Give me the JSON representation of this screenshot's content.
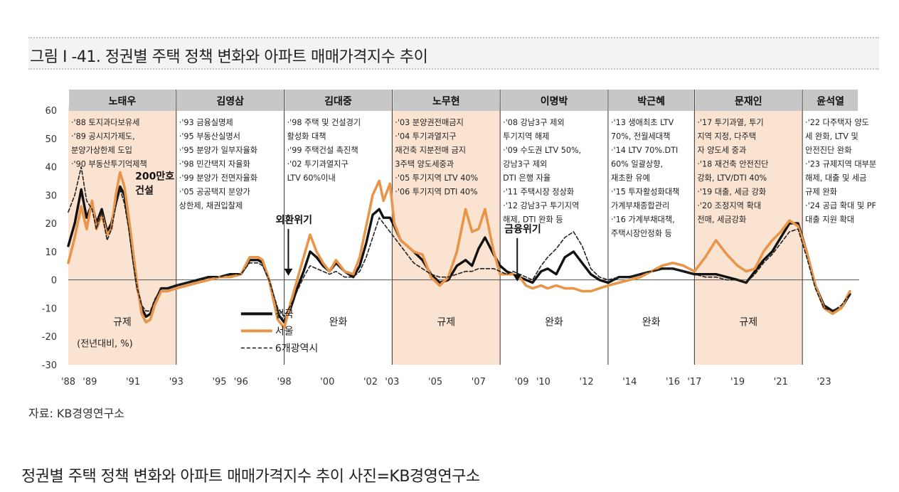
{
  "figure": {
    "title": "그림 I -41. 정권별 주택 정책 변화와 아파트 매매가격지수 추이",
    "source": "자료: KB경영연구소",
    "caption": "정권별 주택 정책 변화와 아파트 매매가격지수 추이 사진=KB경영연구소"
  },
  "chart_data": {
    "type": "line",
    "ylim": [
      -30,
      60
    ],
    "y_ticks": [
      "60",
      "50",
      "40",
      "30",
      "20",
      "10",
      "0",
      "-10",
      "-20",
      "-30"
    ],
    "x_range": [
      1988,
      2024.3
    ],
    "x_ticks": [
      {
        "label": "'88",
        "x": 1988
      },
      {
        "label": "'89",
        "x": 1989
      },
      {
        "label": "'91",
        "x": 1991
      },
      {
        "label": "'93",
        "x": 1993
      },
      {
        "label": "'95",
        "x": 1995
      },
      {
        "label": "'96",
        "x": 1996
      },
      {
        "label": "'98",
        "x": 1998
      },
      {
        "label": "'00",
        "x": 2000
      },
      {
        "label": "'02",
        "x": 2002
      },
      {
        "label": "'03",
        "x": 2003
      },
      {
        "label": "'05",
        "x": 2005
      },
      {
        "label": "'07",
        "x": 2007
      },
      {
        "label": "'09",
        "x": 2009
      },
      {
        "label": "'10",
        "x": 2010
      },
      {
        "label": "'12",
        "x": 2012
      },
      {
        "label": "'14",
        "x": 2014
      },
      {
        "label": "'16",
        "x": 2016
      },
      {
        "label": "'17",
        "x": 2017
      },
      {
        "label": "'19",
        "x": 2019
      },
      {
        "label": "'21",
        "x": 2021
      },
      {
        "label": "'23",
        "x": 2023
      }
    ],
    "ylabel_note": "(전년대비, %)",
    "eras": [
      {
        "name": "노태우",
        "start": 1988,
        "end": 1993,
        "regime": "규제",
        "shaded": true,
        "notes": [
          "·'88 토지과다보유세",
          "·'89 공시지가제도,",
          "  분양가상한제 도입",
          "·'90 부동산투기억제책"
        ]
      },
      {
        "name": "김영삼",
        "start": 1993,
        "end": 1998,
        "regime": "",
        "shaded": false,
        "notes": [
          "·'93 금융실명제",
          "·'95 부동산실명서",
          "·'95 분양가 일부자율화",
          "·'98 민간택지 자율화",
          "·'99 분양가 전면자율화",
          "·'05 공공택지 분양가",
          "  상한제, 채권입찰제"
        ]
      },
      {
        "name": "김대중",
        "start": 1998,
        "end": 2003,
        "regime": "완화",
        "shaded": false,
        "notes": [
          "·'98 주택 및 건설경기",
          "  활성화 대책",
          "·'99 주택건설 촉진책",
          "·'02 투기과열지구",
          "  LTV 60%이내"
        ]
      },
      {
        "name": "노무현",
        "start": 2003,
        "end": 2008,
        "regime": "규제",
        "shaded": true,
        "notes": [
          "·'03 분양권전매금지",
          "·'04 투기과열지구",
          "  재건축 지분전매 금지",
          "  3주택 양도세중과",
          "·'05 투기지역 LTV 40%",
          "·'06 투기지역 DTI 40%"
        ]
      },
      {
        "name": "이명박",
        "start": 2008,
        "end": 2013,
        "regime": "완화",
        "shaded": false,
        "notes": [
          "·'08 강남3구 제외",
          "  투기지역 해제",
          "·'09 수도권 LTV 50%,",
          "  강남3구 제외",
          "  DTI 은행 자율",
          "·'11 주택시장 정상화",
          "·'12 강남3구 투기지역",
          "  해제, DTI 완화 등"
        ]
      },
      {
        "name": "박근혜",
        "start": 2013,
        "end": 2017,
        "regime": "완화",
        "shaded": false,
        "notes": [
          "·'13 생애최초 LTV",
          "  70%, 전월세대책",
          "·'14 LTV 70%.DTI",
          "  60% 일괄상향,",
          "  재초환 유예",
          "·'15 투자활성화대책",
          "  가계부채종합관리",
          "·'16 가계부채대책,",
          "  주택시장안정화 등"
        ]
      },
      {
        "name": "문재인",
        "start": 2017,
        "end": 2022,
        "regime": "규제",
        "shaded": true,
        "notes": [
          "·'17 투기과열, 투기",
          "  지역 지정, 다주택",
          "  자 양도세 중과",
          "·'18 재건축 안전진단",
          "  강화, LTV/DTI 40%",
          "·'19 대출, 세금 강화",
          "·'20 조정지역 확대",
          "  전매, 세금강화"
        ]
      },
      {
        "name": "윤석열",
        "start": 2022,
        "end": 2024.6,
        "regime": "",
        "shaded": false,
        "notes": [
          "·'22 다주택자 양도",
          "  세 완화, LTV 및",
          "  안전진단 완화",
          "·'23 규제지역 대부분",
          "  해제, 대출 및 세금",
          "  규제 완화",
          "·'24 공급 확대 및 PF",
          "  대출 지원 확대"
        ]
      }
    ],
    "annotations": [
      {
        "text": "200만호",
        "x": 1991.1,
        "y": 35.5
      },
      {
        "text": "건설",
        "x": 1991.1,
        "y": 30.5
      },
      {
        "text": "외환위기",
        "x": 1997.6,
        "y": 20,
        "arrow_to": 7
      },
      {
        "text": "금융위기",
        "x": 2008.2,
        "y": 16.8,
        "arrow_to": 5
      }
    ],
    "series": [
      {
        "name": "전국",
        "color": "#111111",
        "style": "solid",
        "x": [
          1988.0,
          1988.3,
          1988.6,
          1988.85,
          1989.1,
          1989.3,
          1989.55,
          1989.8,
          1990.0,
          1990.2,
          1990.4,
          1990.6,
          1990.8,
          1991.0,
          1991.2,
          1991.4,
          1991.6,
          1991.8,
          1992.0,
          1992.3,
          1992.6,
          1993.0,
          1993.5,
          1994.0,
          1994.5,
          1995.0,
          1995.5,
          1996.0,
          1996.4,
          1996.8,
          1997.0,
          1997.3,
          1997.7,
          1998.0,
          1998.3,
          1998.6,
          1998.9,
          1999.2,
          1999.5,
          1999.8,
          2000.1,
          2000.4,
          2000.8,
          2001.2,
          2001.5,
          2001.8,
          2002.1,
          2002.4,
          2002.6,
          2002.9,
          2003.1,
          2003.4,
          2003.7,
          2004.0,
          2004.4,
          2004.8,
          2005.2,
          2005.6,
          2006.0,
          2006.4,
          2006.7,
          2007.0,
          2007.3,
          2007.7,
          2008.0,
          2008.3,
          2008.6,
          2008.9,
          2009.2,
          2009.5,
          2009.9,
          2010.2,
          2010.6,
          2011.0,
          2011.4,
          2011.8,
          2012.2,
          2012.6,
          2013.0,
          2013.5,
          2014.0,
          2014.5,
          2015.0,
          2015.5,
          2016.0,
          2016.5,
          2017.0,
          2017.5,
          2018.0,
          2018.5,
          2019.0,
          2019.4,
          2019.8,
          2020.2,
          2020.6,
          2021.0,
          2021.4,
          2021.8,
          2022.2,
          2022.6,
          2023.0,
          2023.4,
          2023.8,
          2024.2
        ],
        "y": [
          12,
          20,
          32,
          22,
          27,
          20,
          25,
          17,
          20,
          27,
          33,
          30,
          20,
          8,
          -3,
          -10,
          -13,
          -12,
          -8,
          -3,
          -3,
          -2,
          -1,
          0,
          1,
          1,
          2,
          2,
          7,
          7,
          6,
          0,
          -12,
          -15,
          -10,
          -3,
          3,
          10,
          8,
          5,
          3,
          6,
          3,
          1,
          5,
          13,
          23,
          25,
          22,
          22,
          19,
          14,
          12,
          10,
          7,
          2,
          -1,
          0,
          5,
          7,
          5,
          11,
          15,
          9,
          5,
          3,
          2,
          1,
          0,
          -1,
          3,
          4,
          2,
          8,
          10,
          6,
          2,
          0,
          -1,
          1,
          1,
          2,
          3,
          4,
          4,
          3,
          2,
          2,
          2,
          1,
          0,
          -1,
          3,
          7,
          10,
          15,
          20,
          20,
          10,
          -2,
          -9,
          -11,
          -10,
          -5
        ]
      },
      {
        "name": "서울",
        "color": "#e8954a",
        "style": "solid",
        "x": [
          1988.0,
          1988.3,
          1988.6,
          1988.85,
          1989.1,
          1989.3,
          1989.55,
          1989.8,
          1990.0,
          1990.2,
          1990.4,
          1990.6,
          1990.8,
          1991.0,
          1991.2,
          1991.4,
          1991.6,
          1991.8,
          1992.0,
          1992.3,
          1992.6,
          1993.0,
          1993.5,
          1994.0,
          1994.5,
          1995.0,
          1995.5,
          1996.0,
          1996.4,
          1996.8,
          1997.0,
          1997.3,
          1997.7,
          1998.0,
          1998.3,
          1998.6,
          1998.9,
          1999.2,
          1999.5,
          1999.8,
          2000.1,
          2000.4,
          2000.8,
          2001.2,
          2001.5,
          2001.8,
          2002.1,
          2002.4,
          2002.6,
          2002.9,
          2003.1,
          2003.4,
          2003.7,
          2004.0,
          2004.4,
          2004.8,
          2005.2,
          2005.6,
          2006.0,
          2006.4,
          2006.7,
          2007.0,
          2007.3,
          2007.7,
          2008.0,
          2008.3,
          2008.6,
          2008.9,
          2009.2,
          2009.5,
          2009.9,
          2010.2,
          2010.6,
          2011.0,
          2011.4,
          2011.8,
          2012.2,
          2012.6,
          2013.0,
          2013.5,
          2014.0,
          2014.5,
          2015.0,
          2015.5,
          2016.0,
          2016.5,
          2017.0,
          2017.5,
          2018.0,
          2018.5,
          2019.0,
          2019.4,
          2019.8,
          2020.2,
          2020.6,
          2021.0,
          2021.4,
          2021.8,
          2022.2,
          2022.6,
          2023.0,
          2023.4,
          2023.8,
          2024.2
        ],
        "y": [
          6,
          15,
          26,
          18,
          28,
          18,
          23,
          16,
          18,
          30,
          38,
          33,
          22,
          10,
          -2,
          -12,
          -15,
          -14,
          -9,
          -4,
          -4,
          -3,
          -2,
          -1,
          0,
          1,
          1,
          2,
          8,
          8,
          7,
          0,
          -14,
          -17,
          -8,
          0,
          8,
          16,
          10,
          6,
          3,
          7,
          3,
          2,
          8,
          19,
          30,
          35,
          28,
          34,
          20,
          14,
          12,
          10,
          9,
          1,
          -2,
          1,
          10,
          25,
          17,
          18,
          25,
          10,
          2,
          2,
          2,
          1,
          -2,
          -3,
          -2,
          -3,
          -2,
          -3,
          -3,
          -4,
          -4,
          -3,
          -2,
          -1,
          0,
          1,
          3,
          5,
          6,
          5,
          3,
          8,
          14,
          9,
          5,
          3,
          4,
          10,
          14,
          17,
          21,
          19,
          10,
          -2,
          -10,
          -12,
          -10,
          -4
        ]
      },
      {
        "name": "6개광역시",
        "color": "#222222",
        "style": "dashed",
        "x": [
          1988.0,
          1988.3,
          1988.6,
          1988.85,
          1989.1,
          1989.3,
          1989.55,
          1989.8,
          1990.0,
          1990.2,
          1990.4,
          1990.6,
          1990.8,
          1991.0,
          1991.2,
          1991.4,
          1991.6,
          1991.8,
          1992.0,
          1992.3,
          1992.6,
          1993.0,
          1993.5,
          1994.0,
          1994.5,
          1995.0,
          1995.5,
          1996.0,
          1996.4,
          1996.8,
          1997.0,
          1997.3,
          1997.7,
          1998.0,
          1998.3,
          1998.6,
          1998.9,
          1999.2,
          1999.5,
          1999.8,
          2000.1,
          2000.4,
          2000.8,
          2001.2,
          2001.5,
          2001.8,
          2002.1,
          2002.4,
          2002.6,
          2002.9,
          2003.1,
          2003.4,
          2003.7,
          2004.0,
          2004.4,
          2004.8,
          2005.2,
          2005.6,
          2006.0,
          2006.4,
          2006.7,
          2007.0,
          2007.3,
          2007.7,
          2008.0,
          2008.3,
          2008.6,
          2008.9,
          2009.2,
          2009.5,
          2009.9,
          2010.2,
          2010.6,
          2011.0,
          2011.4,
          2011.8,
          2012.2,
          2012.6,
          2013.0,
          2013.5,
          2014.0,
          2014.5,
          2015.0,
          2015.5,
          2016.0,
          2016.5,
          2017.0,
          2017.5,
          2018.0,
          2018.5,
          2019.0,
          2019.4,
          2019.8,
          2020.2,
          2020.6,
          2021.0,
          2021.4,
          2021.8,
          2022.2,
          2022.6,
          2023.0,
          2023.4,
          2023.8,
          2024.2
        ],
        "y": [
          24,
          30,
          40,
          28,
          25,
          18,
          24,
          14,
          18,
          26,
          32,
          27,
          18,
          6,
          -3,
          -9,
          -11,
          -11,
          -7,
          -3,
          -3,
          -2,
          -1,
          0,
          1,
          1,
          2,
          2,
          6,
          6,
          5,
          0,
          -10,
          -13,
          -9,
          -4,
          1,
          5,
          4,
          3,
          2,
          3,
          1,
          1,
          3,
          8,
          15,
          22,
          20,
          17,
          15,
          12,
          9,
          6,
          4,
          2,
          1,
          1,
          2,
          3,
          3,
          4,
          4,
          4,
          3,
          2,
          3,
          2,
          1,
          0,
          5,
          8,
          11,
          15,
          17,
          12,
          4,
          1,
          0,
          1,
          1,
          2,
          3,
          4,
          4,
          3,
          2,
          1,
          1,
          0,
          0,
          -1,
          2,
          6,
          9,
          13,
          17,
          18,
          8,
          -3,
          -10,
          -11,
          -9,
          -5
        ]
      }
    ],
    "legend": {
      "position": "center-left",
      "entries": [
        "전국",
        "서울",
        "6개광역시"
      ]
    }
  }
}
